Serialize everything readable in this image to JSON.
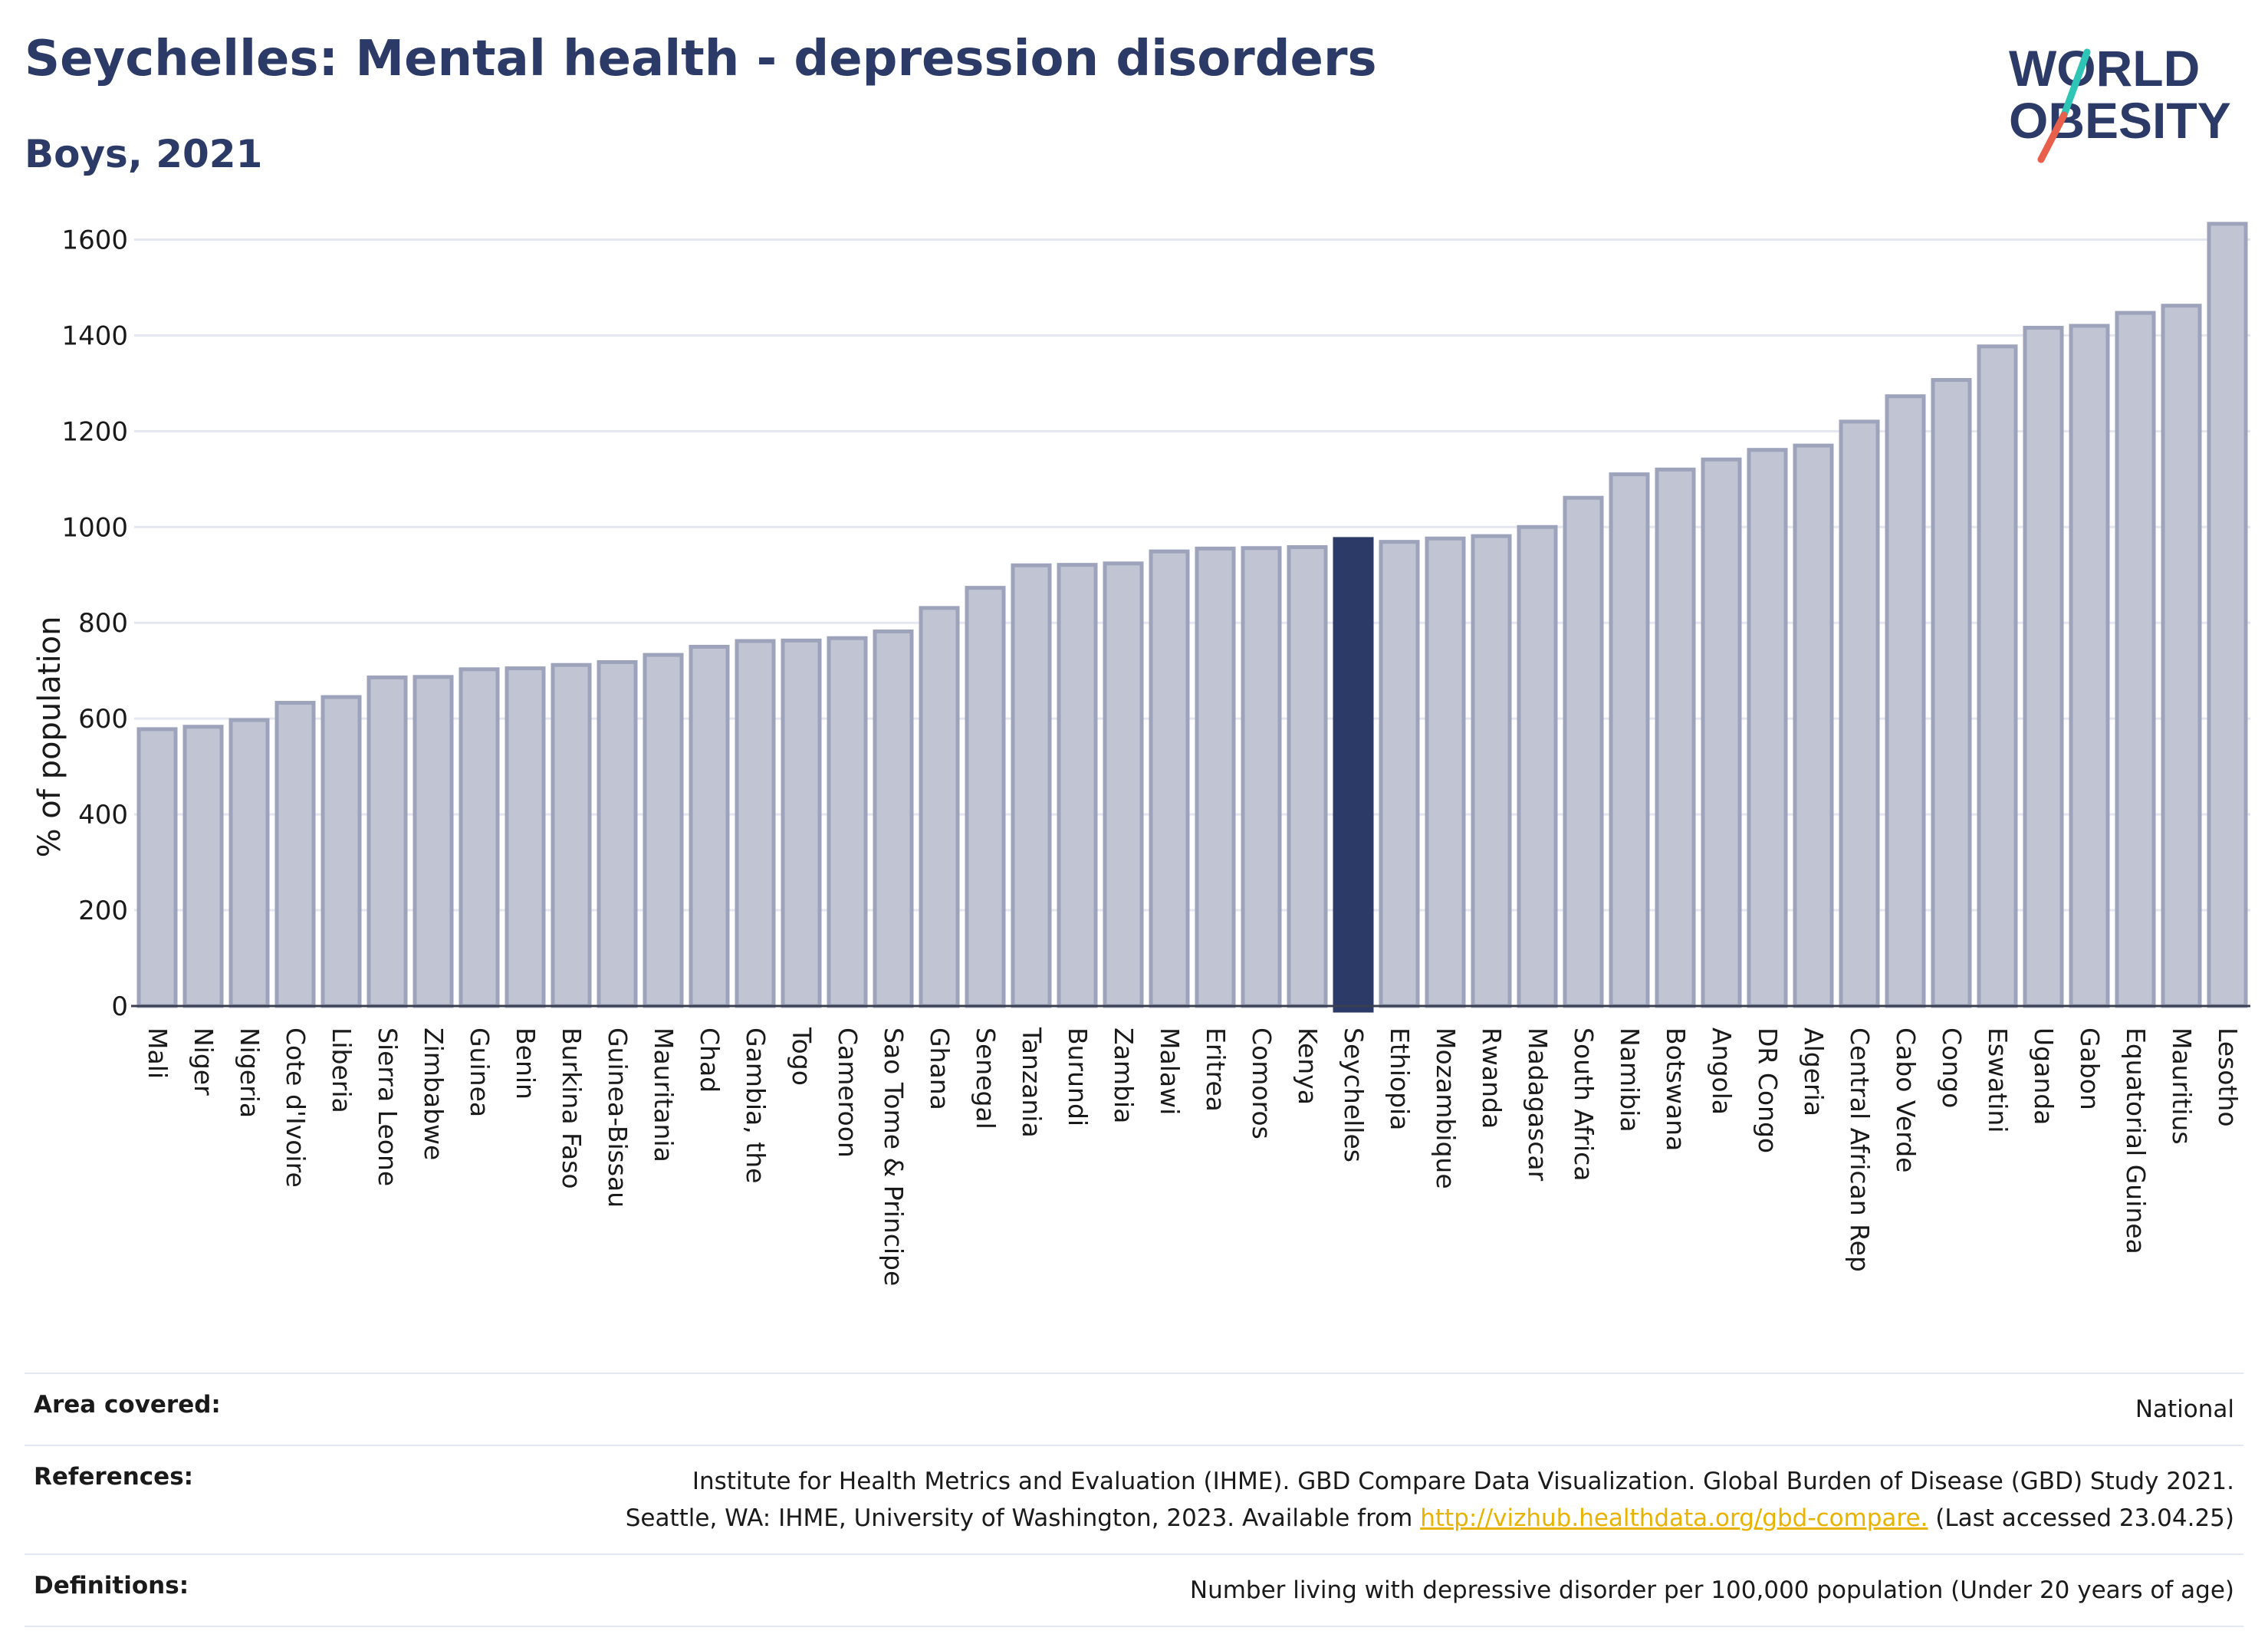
{
  "header": {
    "title": "Seychelles: Mental health - depression disorders",
    "subtitle": "Boys, 2021"
  },
  "logo": {
    "line1": "WORLD",
    "line2": "OBESITY",
    "text_color": "#2b3a67",
    "slash_color_top": "#2ec4b6",
    "slash_color_bottom": "#e8604c"
  },
  "colors": {
    "bar_fill": "#c0c4d3",
    "bar_stroke": "#9da3bb",
    "highlight": "#2b3a67",
    "grid": "#e4e7ef"
  },
  "chart_data": {
    "type": "bar",
    "ylabel": "% of population",
    "xlabel": "",
    "ylim": [
      0,
      1700
    ],
    "yticks": [
      0,
      200,
      400,
      600,
      800,
      1000,
      1200,
      1400,
      1600
    ],
    "grid": true,
    "highlight_category": "Seychelles",
    "categories": [
      "Mali",
      "Niger",
      "Nigeria",
      "Cote d'Ivoire",
      "Liberia",
      "Sierra Leone",
      "Zimbabwe",
      "Guinea",
      "Benin",
      "Burkina Faso",
      "Guinea-Bissau",
      "Mauritania",
      "Chad",
      "Gambia, the",
      "Togo",
      "Cameroon",
      "Sao Tome & Principe",
      "Ghana",
      "Senegal",
      "Tanzania",
      "Burundi",
      "Zambia",
      "Malawi",
      "Eritrea",
      "Comoros",
      "Kenya",
      "Seychelles",
      "Ethiopia",
      "Mozambique",
      "Rwanda",
      "Madagascar",
      "South Africa",
      "Namibia",
      "Botswana",
      "Angola",
      "DR Congo",
      "Algeria",
      "Central African Rep",
      "Cabo Verde",
      "Congo",
      "Eswatini",
      "Uganda",
      "Gabon",
      "Equatorial Guinea",
      "Mauritius",
      "Lesotho"
    ],
    "values": [
      578,
      583,
      597,
      633,
      645,
      686,
      687,
      703,
      705,
      712,
      718,
      733,
      750,
      762,
      763,
      768,
      782,
      831,
      873,
      920,
      921,
      924,
      949,
      955,
      956,
      958,
      975,
      969,
      976,
      981,
      1000,
      1061,
      1110,
      1120,
      1141,
      1161,
      1170,
      1220,
      1273,
      1307,
      1377,
      1416,
      1420,
      1447,
      1462,
      1633
    ]
  },
  "info": {
    "area_label": "Area covered:",
    "area_value": "National",
    "references_label": "References:",
    "references_line1": "Institute for Health Metrics and Evaluation (IHME). GBD Compare Data Visualization. Global Burden of Disease (GBD) Study 2021.",
    "references_line2_pre": "Seattle, WA: IHME, University of Washington, 2023. Available from ",
    "references_link": "http://vizhub.healthdata.org/gbd-compare.",
    "references_line2_post": " (Last accessed 23.04.25)",
    "definitions_label": "Definitions:",
    "definitions_value": "Number living with depressive disorder per 100,000 population (Under 20 years of age)"
  }
}
